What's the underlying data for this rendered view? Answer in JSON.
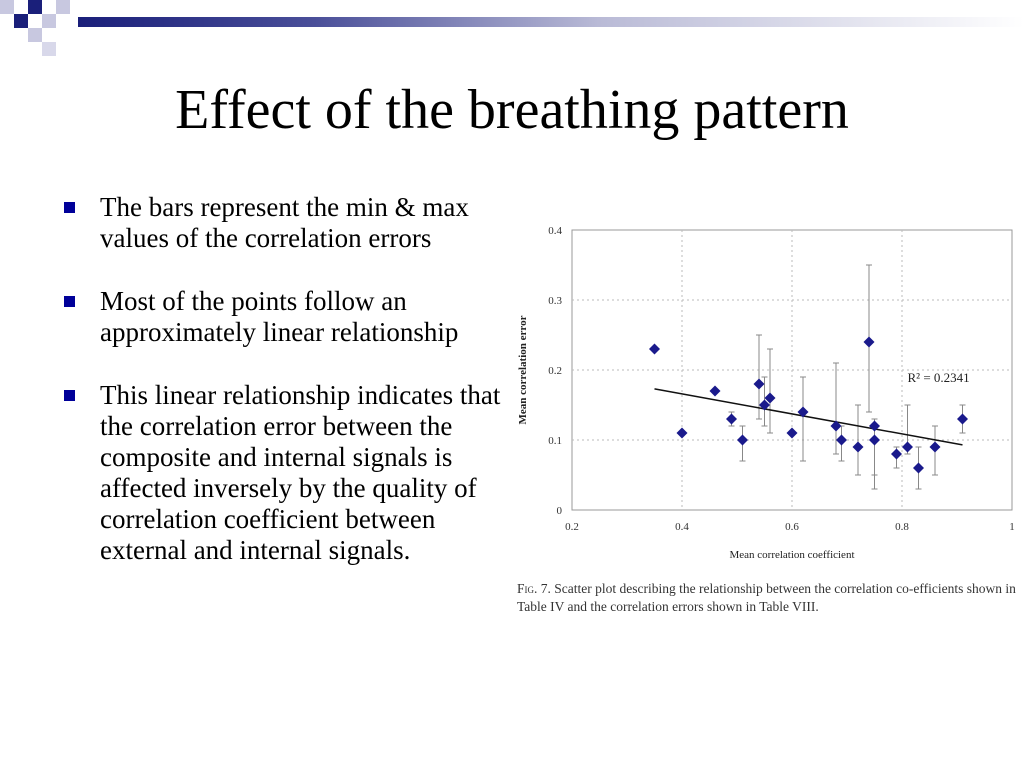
{
  "slide": {
    "title": "Effect of the breathing pattern",
    "bullets": [
      "The bars represent the min & max values of the correlation errors",
      "Most of the points follow an approximately linear relationship",
      "This linear relationship indicates that the correlation error between the composite and internal signals is affected inversely by the quality of correlation coefficient between external and internal signals."
    ]
  },
  "colors": {
    "accent": "#000099",
    "point": "#1a1a8c",
    "grid": "#bbbbbb"
  },
  "figure": {
    "caption_label": "Fig. 7.",
    "caption_text": "Scatter plot describing the relationship between the correlation co-efficients shown in Table IV and the correlation errors shown in Table VIII."
  },
  "chart_data": {
    "type": "scatter",
    "xlabel": "Mean correlation coefficient",
    "ylabel": "Mean correlation error",
    "xlim": [
      0.2,
      1.0
    ],
    "ylim": [
      0,
      0.4
    ],
    "xticks": [
      0.2,
      0.4,
      0.6,
      0.8,
      1.0
    ],
    "xtick_labels": [
      "0.2",
      "0.4",
      "0.6",
      "0.8",
      "1"
    ],
    "yticks": [
      0,
      0.1,
      0.2,
      0.3,
      0.4
    ],
    "ytick_labels": [
      "0",
      "0.1",
      "0.2",
      "0.3",
      "0.4"
    ],
    "grid": true,
    "annotation": "R² = 0.2341",
    "points": [
      {
        "x": 0.35,
        "y": 0.23
      },
      {
        "x": 0.4,
        "y": 0.11
      },
      {
        "x": 0.46,
        "y": 0.17
      },
      {
        "x": 0.49,
        "y": 0.13,
        "ymin": 0.12,
        "ymax": 0.14
      },
      {
        "x": 0.51,
        "y": 0.1,
        "ymin": 0.07,
        "ymax": 0.12
      },
      {
        "x": 0.54,
        "y": 0.18,
        "ymin": 0.13,
        "ymax": 0.25
      },
      {
        "x": 0.55,
        "y": 0.15,
        "ymin": 0.12,
        "ymax": 0.19
      },
      {
        "x": 0.56,
        "y": 0.16,
        "ymin": 0.11,
        "ymax": 0.23
      },
      {
        "x": 0.6,
        "y": 0.11
      },
      {
        "x": 0.62,
        "y": 0.14,
        "ymin": 0.07,
        "ymax": 0.19
      },
      {
        "x": 0.68,
        "y": 0.12,
        "ymin": 0.08,
        "ymax": 0.21
      },
      {
        "x": 0.69,
        "y": 0.1,
        "ymin": 0.07,
        "ymax": 0.12
      },
      {
        "x": 0.72,
        "y": 0.09,
        "ymin": 0.05,
        "ymax": 0.15
      },
      {
        "x": 0.74,
        "y": 0.24,
        "ymin": 0.14,
        "ymax": 0.35
      },
      {
        "x": 0.75,
        "y": 0.12,
        "ymin": 0.05,
        "ymax": 0.13
      },
      {
        "x": 0.75,
        "y": 0.1,
        "ymin": 0.03,
        "ymax": 0.12
      },
      {
        "x": 0.79,
        "y": 0.08,
        "ymin": 0.06,
        "ymax": 0.09
      },
      {
        "x": 0.81,
        "y": 0.09,
        "ymin": 0.08,
        "ymax": 0.15
      },
      {
        "x": 0.83,
        "y": 0.06,
        "ymin": 0.03,
        "ymax": 0.09
      },
      {
        "x": 0.86,
        "y": 0.09,
        "ymin": 0.05,
        "ymax": 0.12
      },
      {
        "x": 0.91,
        "y": 0.13,
        "ymin": 0.11,
        "ymax": 0.15
      }
    ],
    "trendline": {
      "x": [
        0.35,
        0.91
      ],
      "y": [
        0.173,
        0.093
      ]
    }
  }
}
